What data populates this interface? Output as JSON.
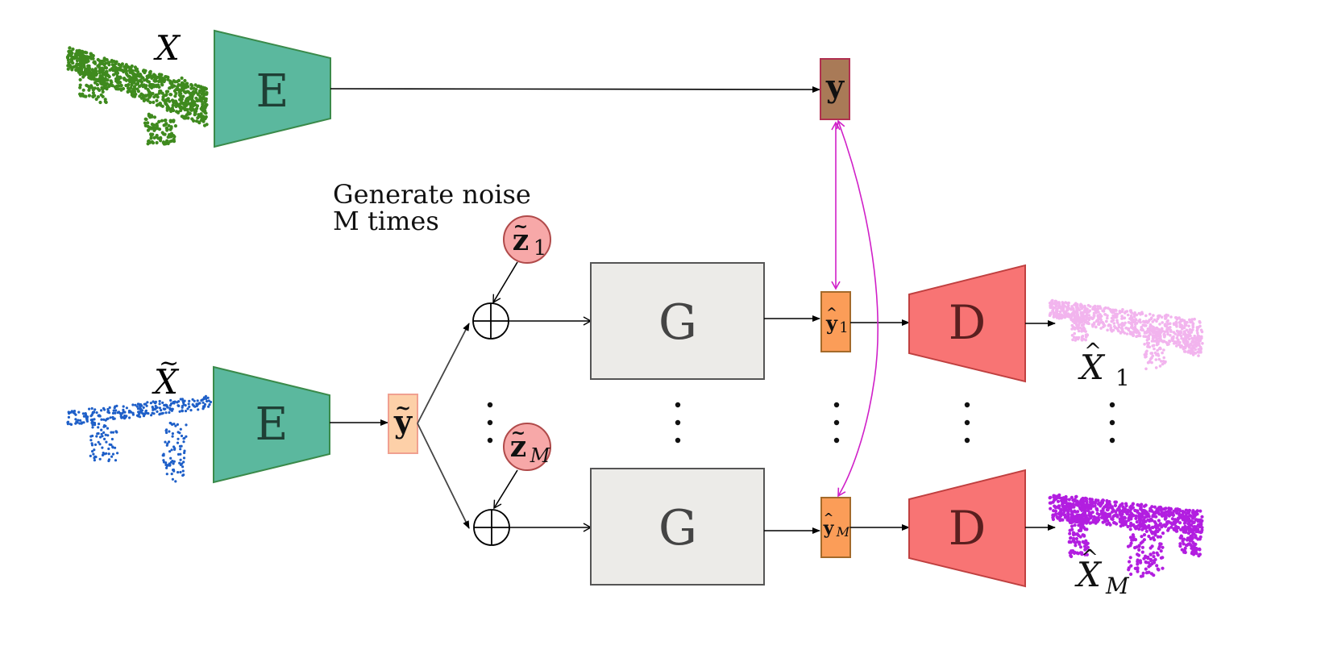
{
  "labels": {
    "input_x": "X",
    "input_x_tilde": "X",
    "encoder_top": "E",
    "encoder_bottom": "E",
    "latent_y": "y",
    "latent_y_tilde": "y",
    "noise_caption_line1": "Generate noise",
    "noise_caption_line2": "M times",
    "noise_z1_main": "z",
    "noise_z1_sub": "1",
    "noise_zm_main": "z",
    "noise_zm_sub": "M",
    "generator_1": "G",
    "generator_m": "G",
    "yhat_1_main": "y",
    "yhat_1_sub": "1",
    "yhat_m_main": "y",
    "yhat_m_sub": "M",
    "decoder_1": "D",
    "decoder_m": "D",
    "output_1_main": "X",
    "output_1_sub": "1",
    "output_m_main": "X",
    "output_m_sub": "M"
  },
  "colors": {
    "encoder_fill": "#5bb89e",
    "encoder_stroke": "#3a8a4a",
    "latent_fill": "#a97a57",
    "latent_stroke": "#b03050",
    "latent_tilde_fill": "#fdd0a8",
    "latent_tilde_stroke": "#f0a090",
    "noise_fill": "#f7a8a8",
    "noise_stroke": "#b04a4a",
    "generator_fill": "#ecebe8",
    "generator_stroke": "#555555",
    "yhat_fill": "#fb9d58",
    "yhat_stroke": "#a46a2a",
    "decoder_fill": "#f87474",
    "decoder_stroke": "#c04040",
    "loss_arrow": "#d020c8",
    "cloud_input": "#3f8a1e",
    "cloud_input_tilde": "#1e5fc8",
    "cloud_output_1": "#f2b4ee",
    "cloud_output_m": "#b21ee0"
  }
}
